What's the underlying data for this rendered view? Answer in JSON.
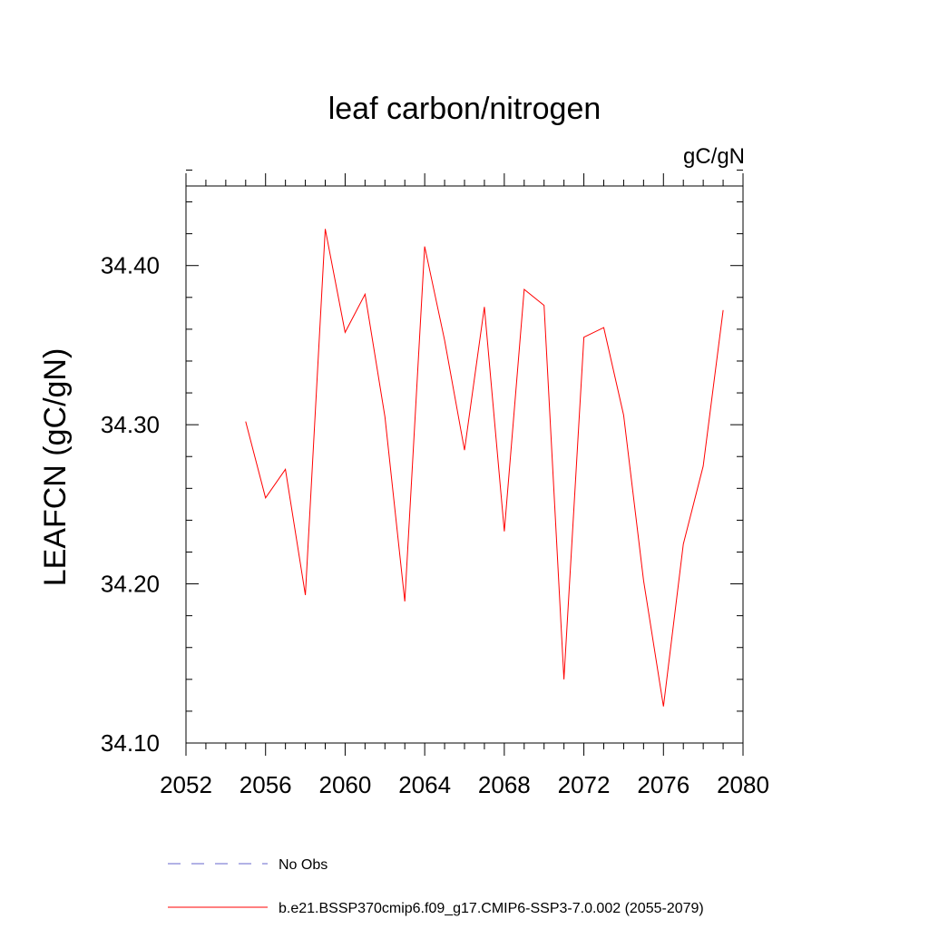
{
  "chart_data": {
    "type": "line",
    "title": "leaf carbon/nitrogen",
    "units_label": "gC/gN",
    "xlabel": "",
    "ylabel": "LEAFCN  (gC/gN)",
    "xlim": [
      2052,
      2080
    ],
    "ylim": [
      34.1,
      34.45
    ],
    "x_major_ticks": [
      2052,
      2056,
      2060,
      2064,
      2068,
      2072,
      2076,
      2080
    ],
    "x_tick_labels": [
      "2052",
      "2056",
      "2060",
      "2064",
      "2068",
      "2072",
      "2076",
      "2080"
    ],
    "y_major_ticks": [
      34.1,
      34.2,
      34.3,
      34.4
    ],
    "y_tick_labels": [
      "34.10",
      "34.20",
      "34.30",
      "34.40"
    ],
    "y_minor_step": 0.02,
    "x_minor_step": 1,
    "grid": false,
    "series": [
      {
        "name": "b.e21.BSSP370cmip6.f09_g17.CMIP6-SSP3-7.0.002 (2055-2079)",
        "color": "#ff0000",
        "style": "solid",
        "x": [
          2055,
          2056,
          2057,
          2058,
          2059,
          2060,
          2061,
          2062,
          2063,
          2064,
          2065,
          2066,
          2067,
          2068,
          2069,
          2070,
          2071,
          2072,
          2073,
          2074,
          2075,
          2076,
          2077,
          2078,
          2079
        ],
        "y": [
          34.302,
          34.254,
          34.272,
          34.193,
          34.423,
          34.358,
          34.382,
          34.305,
          34.189,
          34.412,
          34.353,
          34.284,
          34.374,
          34.233,
          34.385,
          34.375,
          34.14,
          34.355,
          34.361,
          34.306,
          34.202,
          34.123,
          34.225,
          34.274,
          34.372
        ]
      }
    ],
    "legend": [
      {
        "label": "No Obs",
        "color": "#6666cc",
        "style": "dashed"
      },
      {
        "label": "b.e21.BSSP370cmip6.f09_g17.CMIP6-SSP3-7.0.002 (2055-2079)",
        "color": "#ff0000",
        "style": "solid"
      }
    ]
  }
}
